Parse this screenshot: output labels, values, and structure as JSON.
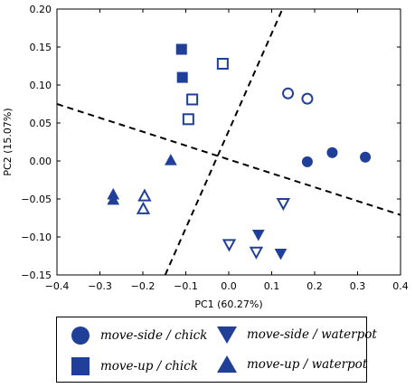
{
  "chart_data": {
    "type": "scatter",
    "xlabel": "PC1 (60.27%)",
    "ylabel": "PC2 (15.07%)",
    "xlim": [
      -0.4,
      0.4
    ],
    "ylim": [
      -0.15,
      0.2
    ],
    "xticks": [
      "−0.4",
      "−0.3",
      "−0.2",
      "−0.1",
      "0.0",
      "0.1",
      "0.2",
      "0.3",
      "0.4"
    ],
    "xtick_values": [
      -0.4,
      -0.3,
      -0.2,
      -0.1,
      0.0,
      0.1,
      0.2,
      0.3,
      0.4
    ],
    "yticks": [
      "−0.15",
      "−0.10",
      "−0.05",
      "0.00",
      "0.05",
      "0.10",
      "0.15",
      "0.20"
    ],
    "ytick_values": [
      -0.15,
      -0.1,
      -0.05,
      0.0,
      0.05,
      0.1,
      0.15,
      0.2
    ],
    "grid": false,
    "color": "#1f3f99",
    "series": [
      {
        "name": "move-side / chick",
        "marker": "circle",
        "fill": "filled",
        "points": [
          [
            0.183,
            -0.001
          ],
          [
            0.241,
            0.011
          ],
          [
            0.318,
            0.005
          ]
        ]
      },
      {
        "name": "move-side / chick",
        "marker": "circle",
        "fill": "open",
        "points": [
          [
            0.138,
            0.089
          ],
          [
            0.183,
            0.082
          ]
        ]
      },
      {
        "name": "move-up / chick",
        "marker": "square",
        "fill": "filled",
        "points": [
          [
            -0.11,
            0.147
          ],
          [
            -0.108,
            0.11
          ]
        ]
      },
      {
        "name": "move-up / chick",
        "marker": "square",
        "fill": "open",
        "points": [
          [
            -0.014,
            0.128
          ],
          [
            -0.085,
            0.081
          ],
          [
            -0.094,
            0.055
          ]
        ]
      },
      {
        "name": "move-side / waterpot",
        "marker": "triangle-down",
        "fill": "filled",
        "points": [
          [
            0.069,
            -0.097
          ],
          [
            0.121,
            -0.122
          ]
        ]
      },
      {
        "name": "move-side / waterpot",
        "marker": "triangle-down",
        "fill": "open",
        "points": [
          [
            0.127,
            -0.056
          ],
          [
            0.001,
            -0.11
          ],
          [
            0.064,
            -0.12
          ]
        ]
      },
      {
        "name": "move-up / waterpot",
        "marker": "triangle-up",
        "fill": "filled",
        "points": [
          [
            -0.135,
            0.001
          ],
          [
            -0.269,
            -0.044
          ],
          [
            -0.269,
            -0.051
          ]
        ]
      },
      {
        "name": "move-up / waterpot",
        "marker": "triangle-up",
        "fill": "open",
        "points": [
          [
            -0.196,
            -0.046
          ],
          [
            -0.199,
            -0.063
          ]
        ]
      }
    ],
    "dividers": [
      {
        "style": "dashed",
        "from": [
          -0.4,
          0.075
        ],
        "to": [
          0.4,
          -0.071
        ]
      },
      {
        "style": "dashed",
        "from": [
          -0.148,
          -0.15
        ],
        "to": [
          0.125,
          0.2
        ]
      }
    ],
    "legend": {
      "placement": "below",
      "entries": [
        {
          "label": "move-side / chick",
          "marker": "circle"
        },
        {
          "label": "move-side / waterpot",
          "marker": "triangle-down"
        },
        {
          "label": "move-up / chick",
          "marker": "square"
        },
        {
          "label": "move-up / waterpot",
          "marker": "triangle-up"
        }
      ]
    }
  }
}
